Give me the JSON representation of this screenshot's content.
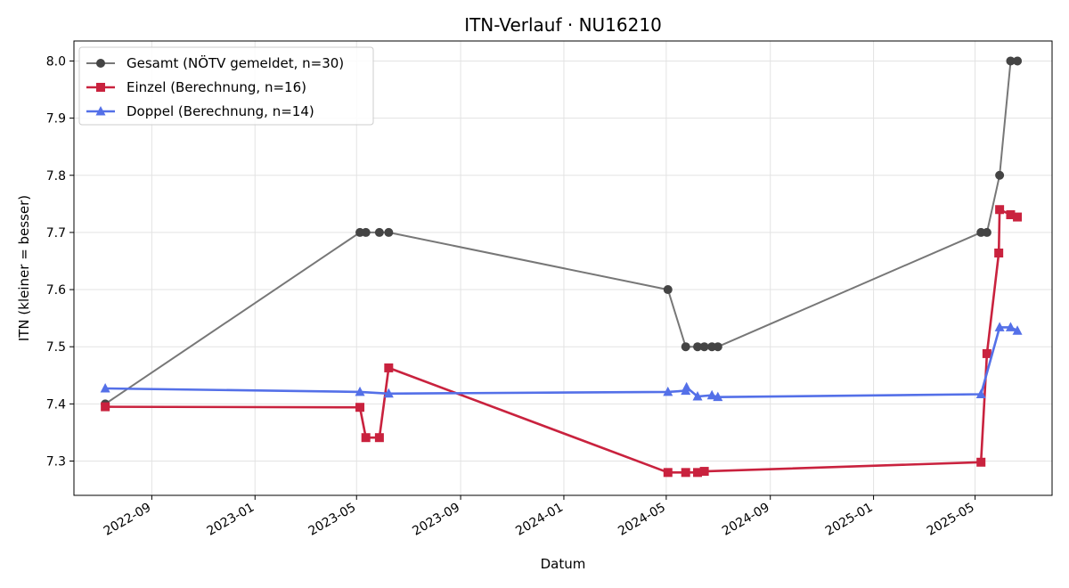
{
  "chart_data": {
    "type": "line",
    "title": "ITN-Verlauf · NU16210",
    "xlabel": "Datum",
    "ylabel": "ITN  (kleiner = besser)",
    "xlim": [
      "2022-06-01",
      "2025-07-31"
    ],
    "ylim": [
      7.24,
      8.035
    ],
    "grid": true,
    "legend_position": "top-left",
    "x_ticks": [
      "2022-09-01",
      "2023-01-01",
      "2023-05-01",
      "2023-09-01",
      "2024-01-01",
      "2024-05-01",
      "2024-09-01",
      "2025-01-01",
      "2025-05-01"
    ],
    "x_tick_labels": [
      "2022-09",
      "2023-01",
      "2023-05",
      "2023-09",
      "2024-01",
      "2024-05",
      "2024-09",
      "2025-01",
      "2025-05"
    ],
    "y_ticks": [
      7.3,
      7.4,
      7.5,
      7.6,
      7.7,
      7.8,
      7.9,
      8.0
    ],
    "y_tick_labels": [
      "7.3",
      "7.4",
      "7.5",
      "7.6",
      "7.7",
      "7.8",
      "7.9",
      "8.0"
    ],
    "series": [
      {
        "name": "Gesamt (NÖTV gemeldet, n=30)",
        "color": "#777777",
        "marker_color": "#444444",
        "marker": "circle",
        "points": [
          [
            "2022-07-08",
            7.4
          ],
          [
            "2023-05-05",
            7.7
          ],
          [
            "2023-05-12",
            7.7
          ],
          [
            "2023-05-28",
            7.7
          ],
          [
            "2023-06-08",
            7.7
          ],
          [
            "2024-05-03",
            7.6
          ],
          [
            "2024-05-24",
            7.5
          ],
          [
            "2024-06-07",
            7.5
          ],
          [
            "2024-06-15",
            7.5
          ],
          [
            "2024-06-24",
            7.5
          ],
          [
            "2024-07-01",
            7.5
          ],
          [
            "2025-05-08",
            7.7
          ],
          [
            "2025-05-15",
            7.7
          ],
          [
            "2025-05-30",
            7.8
          ],
          [
            "2025-06-12",
            8.0
          ],
          [
            "2025-06-20",
            8.0
          ]
        ]
      },
      {
        "name": "Einzel (Berechnung, n=16)",
        "color": "#c9223e",
        "marker_color": "#c9223e",
        "marker": "square",
        "points": [
          [
            "2022-07-08",
            7.395
          ],
          [
            "2023-05-05",
            7.394
          ],
          [
            "2023-05-12",
            7.341
          ],
          [
            "2023-05-28",
            7.341
          ],
          [
            "2023-06-08",
            7.463
          ],
          [
            "2024-05-03",
            7.28
          ],
          [
            "2024-05-24",
            7.28
          ],
          [
            "2024-06-07",
            7.28
          ],
          [
            "2024-06-15",
            7.282
          ],
          [
            "2025-05-08",
            7.298
          ],
          [
            "2025-05-15",
            7.488
          ],
          [
            "2025-05-29",
            7.664
          ],
          [
            "2025-05-30",
            7.74
          ],
          [
            "2025-06-12",
            7.731
          ],
          [
            "2025-06-20",
            7.727
          ]
        ]
      },
      {
        "name": "Doppel (Berechnung, n=14)",
        "color": "#5470e8",
        "marker_color": "#5470e8",
        "marker": "triangle",
        "points": [
          [
            "2022-07-08",
            7.427
          ],
          [
            "2023-05-05",
            7.421
          ],
          [
            "2023-06-08",
            7.418
          ],
          [
            "2024-05-03",
            7.421
          ],
          [
            "2024-05-24",
            7.423
          ],
          [
            "2024-05-25",
            7.429
          ],
          [
            "2024-06-07",
            7.413
          ],
          [
            "2024-06-24",
            7.415
          ],
          [
            "2024-07-01",
            7.412
          ],
          [
            "2025-05-08",
            7.417
          ],
          [
            "2025-05-30",
            7.534
          ],
          [
            "2025-06-12",
            7.534
          ],
          [
            "2025-06-20",
            7.528
          ]
        ]
      }
    ]
  }
}
